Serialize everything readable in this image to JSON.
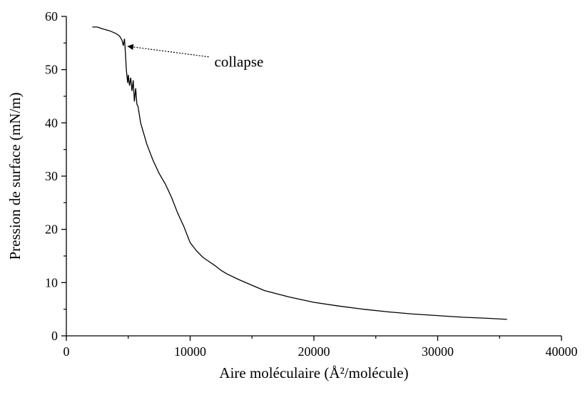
{
  "chart_data": {
    "type": "line",
    "xlabel": "Aire moléculaire (Å²/molécule)",
    "ylabel": "Pression de surface (mN/m)",
    "xlim": [
      0,
      40000
    ],
    "xticks": [
      0,
      10000,
      20000,
      30000,
      40000
    ],
    "xminorticks": [
      5000,
      15000,
      25000,
      35000
    ],
    "ylim": [
      0,
      60
    ],
    "yticks": [
      0,
      10,
      20,
      30,
      40,
      50,
      60
    ],
    "yminorticks": [
      5,
      15,
      25,
      35,
      45,
      55
    ],
    "grid": false,
    "series": [
      {
        "color": "#000000",
        "x": [
          2100,
          2500,
          3000,
          3500,
          4000,
          4300,
          4500,
          4600,
          4700,
          4750,
          4850,
          4950,
          5000,
          5100,
          5200,
          5300,
          5400,
          5500,
          5600,
          5700,
          5800,
          6000,
          6500,
          7000,
          7500,
          8000,
          8500,
          9000,
          9500,
          10000,
          10500,
          11000,
          11500,
          12000,
          12500,
          13000,
          14000,
          15000,
          16000,
          17000,
          18000,
          19000,
          20000,
          22000,
          24000,
          26000,
          28000,
          30000,
          32000,
          34000,
          35600
        ],
        "values": [
          58.0,
          58.0,
          57.6,
          57.3,
          56.8,
          56.3,
          55.5,
          54.5,
          55.8,
          54.0,
          50,
          47.5,
          49,
          47,
          48.5,
          46,
          48,
          44,
          46.5,
          43.5,
          43,
          40,
          36,
          33,
          30.5,
          28.5,
          26,
          23,
          20.5,
          17.5,
          16,
          14.8,
          14,
          13.2,
          12.3,
          11.6,
          10.5,
          9.5,
          8.5,
          7.9,
          7.3,
          6.8,
          6.3,
          5.6,
          5.0,
          4.5,
          4.1,
          3.8,
          3.5,
          3.3,
          3.1
        ]
      }
    ],
    "annotations": [
      {
        "text": "collapse",
        "xy": [
          4750,
          54.4
        ],
        "xytext": [
          11500,
          52.4
        ]
      }
    ]
  }
}
